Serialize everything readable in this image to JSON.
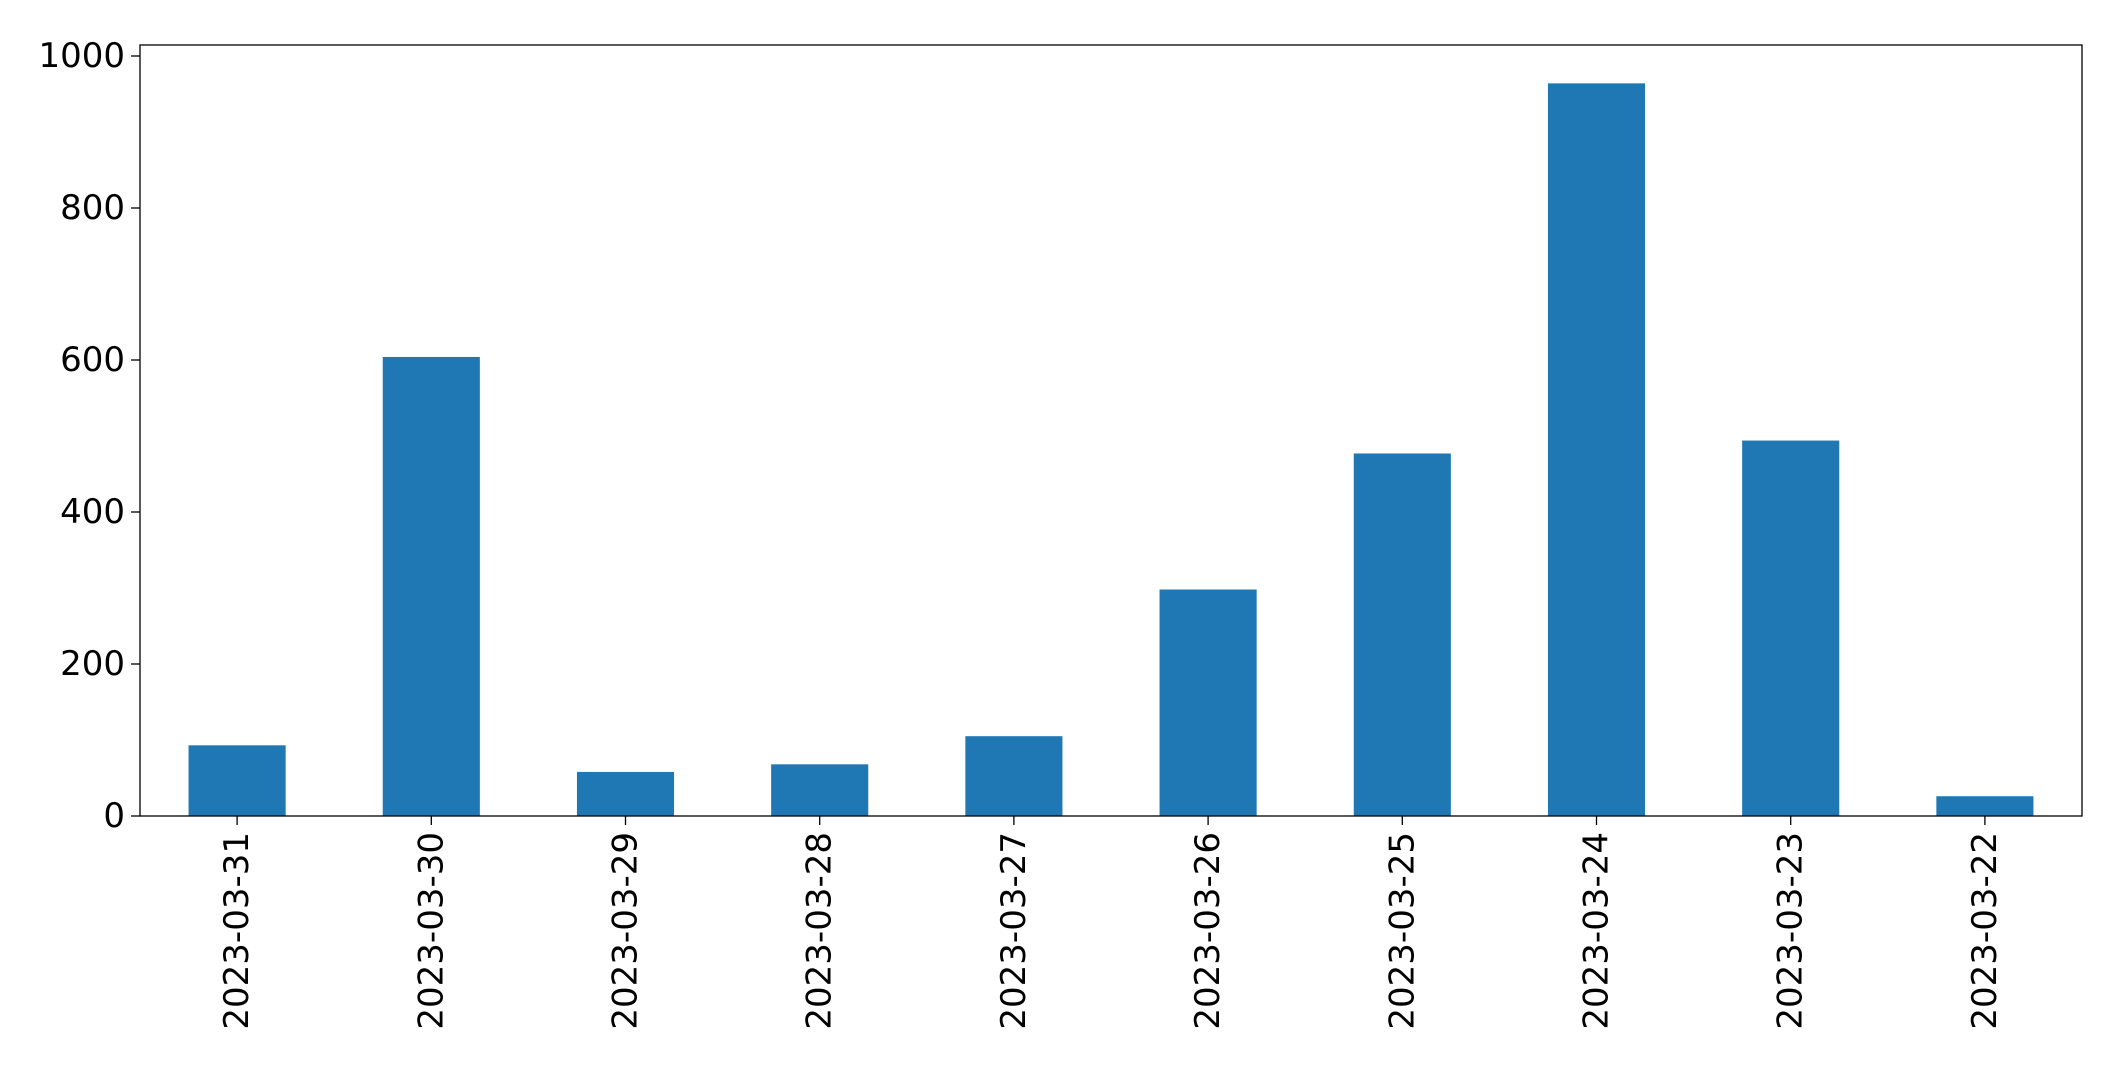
{
  "chart_data": {
    "type": "bar",
    "categories": [
      "2023-03-31",
      "2023-03-30",
      "2023-03-29",
      "2023-03-28",
      "2023-03-27",
      "2023-03-26",
      "2023-03-25",
      "2023-03-24",
      "2023-03-23",
      "2023-03-22"
    ],
    "values": [
      93,
      604,
      58,
      68,
      105,
      298,
      477,
      964,
      494,
      26
    ],
    "title": "",
    "xlabel": "",
    "ylabel": "",
    "ylim": [
      0,
      1000
    ],
    "yticks": [
      0,
      200,
      400,
      600,
      800,
      1000
    ],
    "grid": false,
    "legend": "none",
    "bar_color": "#1f77b4",
    "axis_color": "#000000",
    "background": "#ffffff"
  }
}
